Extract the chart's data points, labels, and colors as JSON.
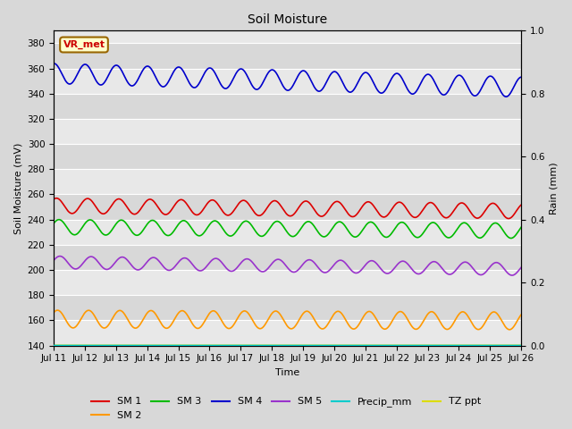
{
  "title": "Soil Moisture",
  "ylabel_left": "Soil Moisture (mV)",
  "ylabel_right": "Rain (mm)",
  "xlabel": "Time",
  "annotation_text": "VR_met",
  "annotation_facecolor": "#ffffcc",
  "annotation_edgecolor": "#996600",
  "annotation_textcolor": "#cc0000",
  "ylim_left": [
    140,
    390
  ],
  "ylim_right": [
    0.0,
    1.0
  ],
  "background_color": "#d8d8d8",
  "plot_bg_color": "#e8e8e8",
  "band_colors": [
    "#e0e0e0",
    "#d0d0d0"
  ],
  "grid_color": "#ffffff",
  "sm1_color": "#dd0000",
  "sm2_color": "#ff9900",
  "sm3_color": "#00bb00",
  "sm4_color": "#0000cc",
  "sm5_color": "#9933cc",
  "precip_color": "#00cccc",
  "tz_ppt_color": "#dddd00",
  "sm1_base": 251,
  "sm1_amp": 6,
  "sm1_freq": 1.0,
  "sm1_trend": -0.012,
  "sm2_base": 161,
  "sm2_amp": 7,
  "sm2_freq": 1.0,
  "sm2_trend": -0.004,
  "sm3_base": 234,
  "sm3_amp": 6,
  "sm3_freq": 1.0,
  "sm3_trend": -0.008,
  "sm4_base": 356,
  "sm4_amp": 8,
  "sm4_freq": 1.0,
  "sm4_trend": -0.03,
  "sm5_base": 206,
  "sm5_amp": 5,
  "sm5_freq": 1.0,
  "sm5_trend": -0.015,
  "tz_ppt_val": 140,
  "x_tick_labels": [
    "Jul 11",
    "Jul 12",
    "Jul 13",
    "Jul 14",
    "Jul 15",
    "Jul 16",
    "Jul 17",
    "Jul 18",
    "Jul 19",
    "Jul 20",
    "Jul 21",
    "Jul 22",
    "Jul 23",
    "Jul 24",
    "Jul 25",
    "Jul 26"
  ],
  "yticks_left": [
    140,
    160,
    180,
    200,
    220,
    240,
    260,
    280,
    300,
    320,
    340,
    360,
    380
  ],
  "yticks_right": [
    0.0,
    0.2,
    0.4,
    0.6,
    0.8,
    1.0
  ],
  "title_fontsize": 10,
  "label_fontsize": 8,
  "tick_fontsize": 7.5
}
